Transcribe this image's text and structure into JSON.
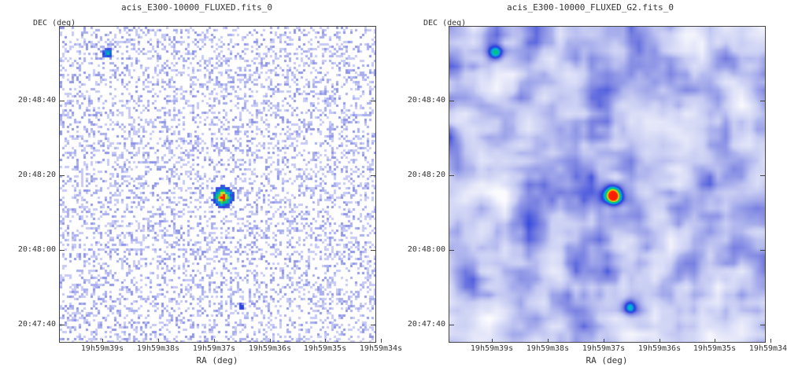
{
  "chart_data": [
    {
      "type": "heatmap",
      "title": "acis_E300-10000_FLUXED.fits_0",
      "ylabel": "DEC (deg)",
      "xlabel": "RA (deg)",
      "xticks": [
        "19h59m39s",
        "19h59m38s",
        "19h59m37s",
        "19h59m36s",
        "19h59m35s",
        "19h59m34s"
      ],
      "yticks": [
        "20:48:40",
        "20:48:20",
        "20:48:00",
        "20:47:40"
      ],
      "style": "sparse-counts",
      "sources": [
        {
          "ra": "19h59m38.95s",
          "dec": "20:48:53",
          "intensity": 0.45
        },
        {
          "ra": "19h59m36.85s",
          "dec": "20:48:15",
          "intensity": 1.0
        },
        {
          "ra": "19h59m36.55s",
          "dec": "20:47:45",
          "intensity": 0.3
        }
      ]
    },
    {
      "type": "heatmap",
      "title": "acis_E300-10000_FLUXED_G2.fits_0",
      "ylabel": "DEC (deg)",
      "xlabel": "RA (deg)",
      "xticks": [
        "19h59m39s",
        "19h59m38s",
        "19h59m37s",
        "19h59m36s",
        "19h59m35s",
        "19h59m34s"
      ],
      "yticks": [
        "20:48:40",
        "20:48:20",
        "20:48:00",
        "20:47:40"
      ],
      "style": "smoothed",
      "sources": [
        {
          "ra": "19h59m38.95s",
          "dec": "20:48:53",
          "intensity": 0.5
        },
        {
          "ra": "19h59m36.85s",
          "dec": "20:48:15",
          "intensity": 1.0
        },
        {
          "ra": "19h59m36.55s",
          "dec": "20:47:45",
          "intensity": 0.42
        }
      ]
    }
  ],
  "colors": {
    "background_low": "#ffffff",
    "background_mid": "#c8cdf3",
    "background_high": "#7078e0",
    "peak_hot": "#ff2200"
  }
}
